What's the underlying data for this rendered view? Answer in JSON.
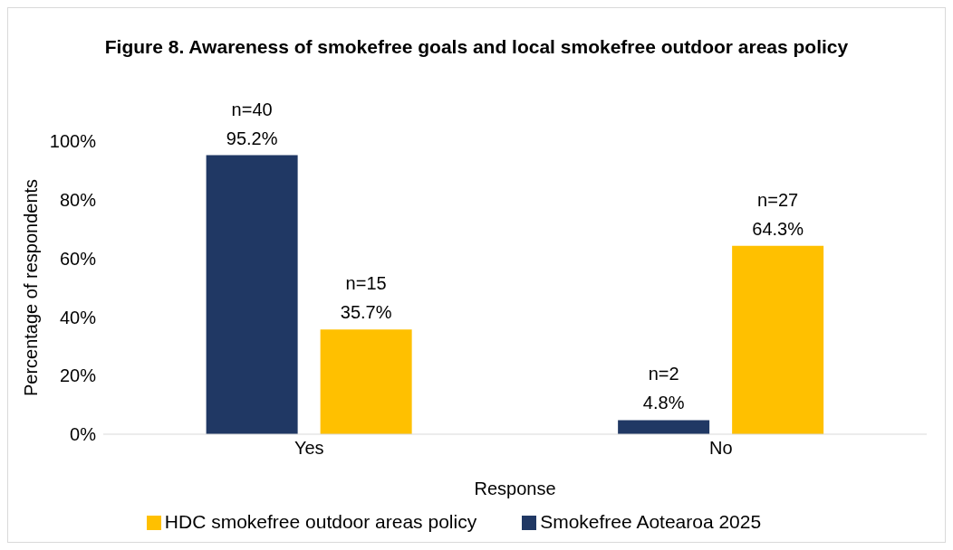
{
  "chart_data": {
    "type": "bar",
    "title": "Figure 8. Awareness of smokefree goals and local smokefree outdoor areas policy",
    "xlabel": "Response",
    "ylabel": "Percentage of respondents",
    "categories": [
      "Yes",
      "No"
    ],
    "series": [
      {
        "name": "Smokefree Aotearoa 2025",
        "color": "#203864",
        "values": [
          95.2,
          4.8
        ],
        "value_labels": [
          "n=40\n95.2%",
          "n=2\n4.8%"
        ]
      },
      {
        "name": "HDC smokefree outdoor areas policy",
        "color": "#ffc000",
        "values": [
          35.7,
          64.3
        ],
        "value_labels": [
          "n=15\n35.7%",
          "n=27\n64.3%"
        ]
      }
    ],
    "ylim": [
      0,
      100
    ],
    "yticks": [
      {
        "value": 0,
        "label": "0%"
      },
      {
        "value": 20,
        "label": "20%"
      },
      {
        "value": 40,
        "label": "40%"
      },
      {
        "value": 60,
        "label": "60%"
      },
      {
        "value": 80,
        "label": "80%"
      },
      {
        "value": 100,
        "label": "100%"
      }
    ],
    "grid": false,
    "legend": "bottom"
  }
}
